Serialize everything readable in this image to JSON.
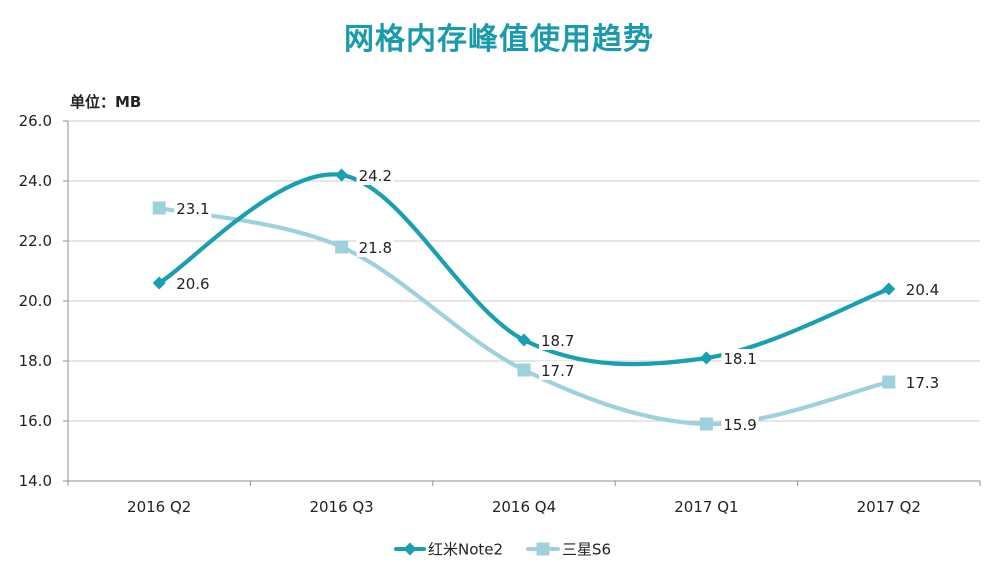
{
  "title": "网格内存峰值使用趋势",
  "unit_label": "单位：MB",
  "colors": {
    "title": "#1a9aad",
    "grid": "#cccccc",
    "axis": "#8f8f8f",
    "text": "#222222",
    "label_background": "#ffffff"
  },
  "chart_data": {
    "type": "line",
    "smooth": true,
    "categories": [
      "2016 Q2",
      "2016 Q3",
      "2016 Q4",
      "2017 Q1",
      "2017 Q2"
    ],
    "series": [
      {
        "name": "红米Note2",
        "values": [
          20.6,
          24.2,
          18.7,
          18.1,
          20.4
        ],
        "color": "#1a9fb2",
        "marker": "diamond"
      },
      {
        "name": "三星S6",
        "values": [
          23.1,
          21.8,
          17.7,
          15.9,
          17.3
        ],
        "color": "#9ed1de",
        "marker": "square"
      }
    ],
    "ylim": [
      14,
      26
    ],
    "y_step": 2,
    "y_tick_labels": [
      "14.0",
      "16.0",
      "18.0",
      "20.0",
      "22.0",
      "24.0",
      "26.0"
    ],
    "grid": true,
    "data_labels": true,
    "legend_position": "bottom"
  }
}
